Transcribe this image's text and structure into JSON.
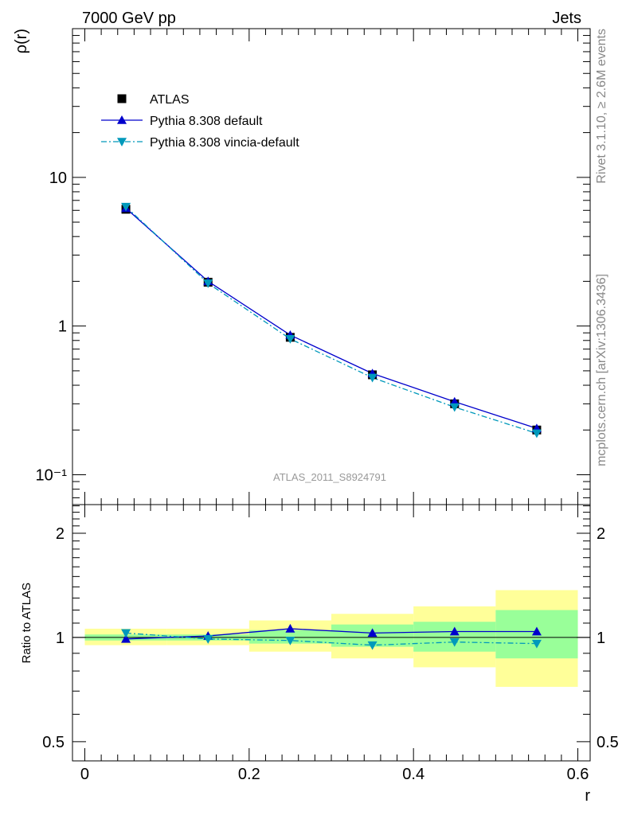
{
  "header": {
    "left_title": "7000 GeV pp",
    "right_title": "Jets"
  },
  "side_labels": {
    "rivet": "Rivet 3.1.10, ≥ 2.6M events",
    "mcplots": "mcplots.cern.ch [arXiv:1306.3436]"
  },
  "analysis_label": "ATLAS_2011_S8924791",
  "colors": {
    "data": "#000000",
    "default": "#0000cc",
    "vincia": "#0099bb",
    "band_inner": "#99ff99",
    "band_outer": "#ffff99"
  },
  "chart_data": [
    {
      "type": "line",
      "panel": "main",
      "xlabel": "r",
      "ylabel": "ρ(r)",
      "xlim": [
        -0.015,
        0.615
      ],
      "ylim": [
        0.063,
        100
      ],
      "log_y": true,
      "y_ticks": [
        {
          "value": 10,
          "label": "10"
        },
        {
          "value": 1,
          "label": "1"
        },
        {
          "value": 0.1,
          "label": "10⁻¹"
        }
      ],
      "legend_position": "top-left",
      "x": [
        0.05,
        0.15,
        0.25,
        0.35,
        0.45,
        0.55
      ],
      "series": [
        {
          "name": "ATLAS",
          "marker": "square",
          "values": [
            6.1,
            1.97,
            0.84,
            0.47,
            0.3,
            0.2
          ]
        },
        {
          "name": "Pythia 8.308 default",
          "marker": "triangle-up",
          "values": [
            6.2,
            2.0,
            0.87,
            0.48,
            0.31,
            0.205
          ]
        },
        {
          "name": "Pythia 8.308 vincia-default",
          "marker": "triangle-down",
          "values": [
            6.35,
            1.94,
            0.82,
            0.45,
            0.285,
            0.19
          ]
        }
      ]
    },
    {
      "type": "line",
      "panel": "ratio",
      "xlabel": "r",
      "ylabel": "Ratio to ATLAS",
      "xlim": [
        -0.015,
        0.615
      ],
      "ylim": [
        0.44,
        2.42
      ],
      "log_y": true,
      "x_ticks": [
        {
          "value": 0,
          "label": "0"
        },
        {
          "value": 0.2,
          "label": "0.2"
        },
        {
          "value": 0.4,
          "label": "0.4"
        },
        {
          "value": 0.6,
          "label": "0.6"
        }
      ],
      "y_ticks": [
        {
          "value": 2,
          "label": "2"
        },
        {
          "value": 1,
          "label": "1"
        },
        {
          "value": 0.5,
          "label": "0.5"
        }
      ],
      "bins": [
        [
          0.0,
          0.1
        ],
        [
          0.1,
          0.2
        ],
        [
          0.2,
          0.3
        ],
        [
          0.3,
          0.4
        ],
        [
          0.4,
          0.5
        ],
        [
          0.5,
          0.6
        ]
      ],
      "bands": {
        "inner": [
          [
            0.98,
            1.02
          ],
          [
            0.98,
            1.02
          ],
          [
            0.96,
            1.05
          ],
          [
            0.94,
            1.09
          ],
          [
            0.91,
            1.11
          ],
          [
            0.87,
            1.2
          ]
        ],
        "outer": [
          [
            0.95,
            1.06
          ],
          [
            0.95,
            1.06
          ],
          [
            0.91,
            1.12
          ],
          [
            0.87,
            1.17
          ],
          [
            0.82,
            1.23
          ],
          [
            0.72,
            1.37
          ]
        ]
      },
      "x": [
        0.05,
        0.15,
        0.25,
        0.35,
        0.45,
        0.55
      ],
      "series": [
        {
          "name": "Pythia 8.308 default",
          "marker": "triangle-up",
          "values": [
            0.99,
            1.01,
            1.06,
            1.03,
            1.04,
            1.04
          ]
        },
        {
          "name": "Pythia 8.308 vincia-default",
          "marker": "triangle-down",
          "values": [
            1.03,
            0.99,
            0.98,
            0.95,
            0.97,
            0.96
          ]
        }
      ]
    }
  ]
}
